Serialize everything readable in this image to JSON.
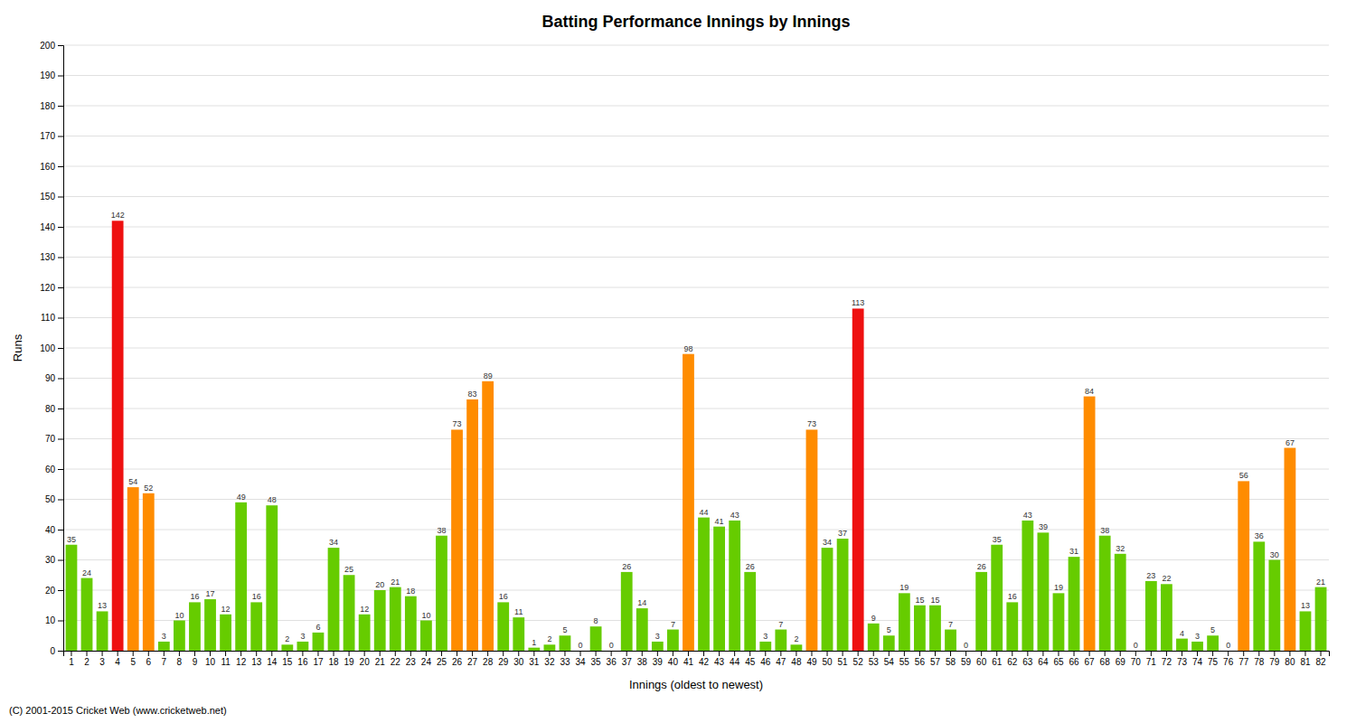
{
  "chart_data": {
    "type": "bar",
    "title": "Batting Performance Innings by Innings",
    "x_label": "Innings (oldest to newest)",
    "y_label": "Runs",
    "annotations": [
      "(C) 2001-2015 Cricket Web (www.cricketweb.net)"
    ],
    "categories": [
      "1",
      "2",
      "3",
      "4",
      "5",
      "6",
      "7",
      "8",
      "9",
      "10",
      "11",
      "12",
      "13",
      "14",
      "15",
      "16",
      "17",
      "18",
      "19",
      "20",
      "21",
      "22",
      "23",
      "24",
      "25",
      "26",
      "27",
      "28",
      "29",
      "30",
      "31",
      "32",
      "33",
      "34",
      "35",
      "36",
      "37",
      "38",
      "39",
      "40",
      "41",
      "42",
      "43",
      "44",
      "45",
      "46",
      "47",
      "48",
      "49",
      "50",
      "51",
      "52",
      "53",
      "54",
      "55",
      "56",
      "57",
      "58",
      "59",
      "60",
      "61",
      "62",
      "63",
      "64",
      "65",
      "66",
      "67",
      "68",
      "69",
      "70",
      "71",
      "72",
      "73",
      "74",
      "75",
      "76",
      "77",
      "78",
      "79",
      "80",
      "81",
      "82"
    ],
    "values": [
      35,
      24,
      13,
      142,
      54,
      52,
      3,
      10,
      16,
      17,
      12,
      49,
      16,
      48,
      2,
      3,
      6,
      34,
      25,
      12,
      20,
      21,
      18,
      10,
      38,
      73,
      83,
      89,
      16,
      11,
      1,
      2,
      5,
      0,
      8,
      0,
      26,
      14,
      3,
      7,
      98,
      44,
      41,
      43,
      26,
      3,
      7,
      2,
      73,
      34,
      37,
      113,
      9,
      5,
      19,
      15,
      15,
      7,
      0,
      26,
      35,
      16,
      43,
      39,
      19,
      31,
      84,
      38,
      32,
      0,
      23,
      22,
      4,
      3,
      5,
      0,
      56,
      36,
      30,
      67,
      13,
      21
    ],
    "colors": [
      "#66CC00",
      "#66CC00",
      "#66CC00",
      "#EE1111",
      "#FF8C00",
      "#FF8C00",
      "#66CC00",
      "#66CC00",
      "#66CC00",
      "#66CC00",
      "#66CC00",
      "#66CC00",
      "#66CC00",
      "#66CC00",
      "#66CC00",
      "#66CC00",
      "#66CC00",
      "#66CC00",
      "#66CC00",
      "#66CC00",
      "#66CC00",
      "#66CC00",
      "#66CC00",
      "#66CC00",
      "#66CC00",
      "#FF8C00",
      "#FF8C00",
      "#FF8C00",
      "#66CC00",
      "#66CC00",
      "#66CC00",
      "#66CC00",
      "#66CC00",
      "#66CC00",
      "#66CC00",
      "#66CC00",
      "#66CC00",
      "#66CC00",
      "#66CC00",
      "#66CC00",
      "#FF8C00",
      "#66CC00",
      "#66CC00",
      "#66CC00",
      "#66CC00",
      "#66CC00",
      "#66CC00",
      "#66CC00",
      "#FF8C00",
      "#66CC00",
      "#66CC00",
      "#EE1111",
      "#66CC00",
      "#66CC00",
      "#66CC00",
      "#66CC00",
      "#66CC00",
      "#66CC00",
      "#66CC00",
      "#66CC00",
      "#66CC00",
      "#66CC00",
      "#66CC00",
      "#66CC00",
      "#66CC00",
      "#66CC00",
      "#FF8C00",
      "#66CC00",
      "#66CC00",
      "#66CC00",
      "#66CC00",
      "#66CC00",
      "#66CC00",
      "#66CC00",
      "#66CC00",
      "#66CC00",
      "#FF8C00",
      "#66CC00",
      "#66CC00",
      "#FF8C00",
      "#66CC00",
      "#66CC00"
    ],
    "ylim": [
      0,
      200
    ],
    "yticks": [
      0,
      10,
      20,
      30,
      40,
      50,
      60,
      70,
      80,
      90,
      100,
      110,
      120,
      130,
      140,
      150,
      160,
      170,
      180,
      190,
      200
    ],
    "grid": true,
    "data_labels": true
  }
}
